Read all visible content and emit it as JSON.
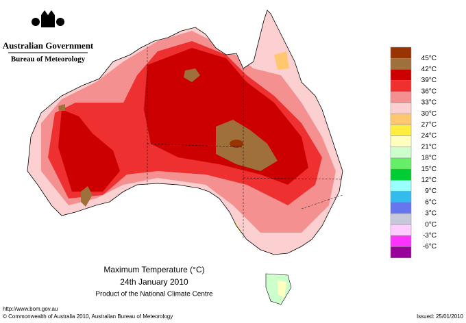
{
  "header": {
    "agency": "Australian Government",
    "bureau": "Bureau of Meteorology"
  },
  "title": "Maximum Temperature (°C)",
  "date": "24th January 2010",
  "product": "Product of the National Climate Centre",
  "url": "http://www.bom.gov.au",
  "copyright": "© Commonwealth of Australia 2010, Australian Bureau of Meteorology",
  "issued": "Issued: 25/01/2010",
  "legend": {
    "colors": [
      "#993300",
      "#a0703c",
      "#cc0000",
      "#ee3030",
      "#f59090",
      "#fcd0d0",
      "#ffc870",
      "#ffee40",
      "#ffffc0",
      "#ccffcc",
      "#66ee66",
      "#00cc33",
      "#99ffff",
      "#33bbee",
      "#6677ee",
      "#c8c8dd",
      "#ffccff",
      "#ff33ff",
      "#990099"
    ],
    "labels": [
      "45°C",
      "42°C",
      "39°C",
      "36°C",
      "33°C",
      "30°C",
      "27°C",
      "24°C",
      "21°C",
      "18°C",
      "15°C",
      "12°C",
      "9°C",
      "6°C",
      "3°C",
      "0°C",
      "-3°C",
      "-6°C"
    ]
  }
}
